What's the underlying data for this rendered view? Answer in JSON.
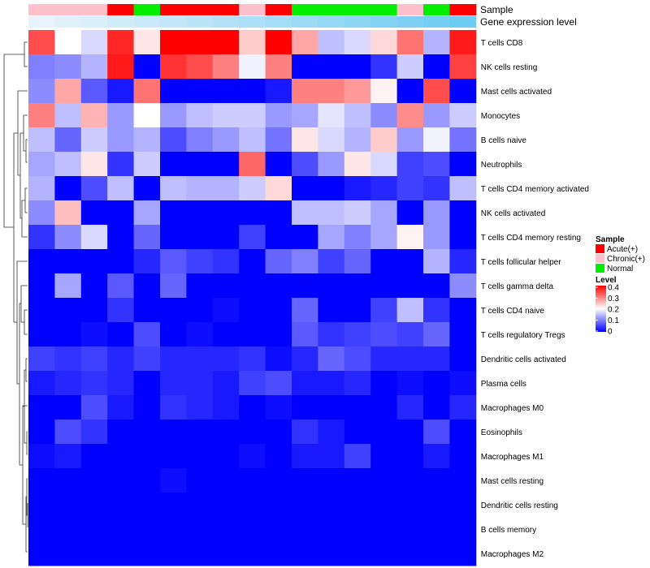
{
  "chart_data": {
    "type": "heatmap",
    "title": "",
    "annotation_labels": [
      "Sample",
      "Gene expression level"
    ],
    "rows": [
      "T cells CD8",
      "NK cells resting",
      "Mast cells activated",
      "Monocytes",
      "B cells naive",
      "Neutrophils",
      "T cells CD4 memory activated",
      "NK cells activated",
      "T cells CD4 memory resting",
      "T cells follicular helper",
      "T cells gamma delta",
      "T cells CD4 naive",
      "T cells regulatory  Tregs",
      "Dendritic cells activated",
      "Plasma cells",
      "Macrophages M0",
      "Eosinophils",
      "Macrophages M1",
      "Mast cells resting",
      "Dendritic cells resting",
      "B cells memory",
      "Macrophages M2"
    ],
    "sample_groups": [
      "Chronic(+)",
      "Chronic(+)",
      "Chronic(+)",
      "Acute(+)",
      "Normal",
      "Acute(+)",
      "Acute(+)",
      "Acute(+)",
      "Chronic(+)",
      "Acute(+)",
      "Normal",
      "Normal",
      "Normal",
      "Normal",
      "Chronic(+)",
      "Normal",
      "Acute(+)"
    ],
    "gene_expression_level": [
      0.02,
      0.03,
      0.04,
      0.05,
      0.06,
      0.07,
      0.08,
      0.09,
      0.1,
      0.11,
      0.12,
      0.13,
      0.14,
      0.15,
      0.16,
      0.17,
      0.18
    ],
    "values": [
      [
        0.34,
        0.2,
        0.17,
        0.37,
        0.22,
        0.4,
        0.4,
        0.4,
        0.24,
        0.4,
        0.27,
        0.15,
        0.17,
        0.23,
        0.31,
        0.14,
        0.38
      ],
      [
        0.1,
        0.11,
        0.14,
        0.38,
        0.0,
        0.36,
        0.34,
        0.3,
        0.19,
        0.3,
        0.0,
        0.0,
        0.0,
        0.04,
        0.16,
        0.0,
        0.35
      ],
      [
        0.11,
        0.27,
        0.07,
        0.02,
        0.31,
        0.0,
        0.0,
        0.0,
        0.0,
        0.02,
        0.3,
        0.3,
        0.28,
        0.21,
        0.0,
        0.34,
        0.0
      ],
      [
        0.3,
        0.15,
        0.26,
        0.12,
        0.2,
        0.12,
        0.15,
        0.16,
        0.16,
        0.12,
        0.13,
        0.18,
        0.15,
        0.11,
        0.29,
        0.12,
        0.16
      ],
      [
        0.15,
        0.08,
        0.16,
        0.12,
        0.14,
        0.06,
        0.1,
        0.12,
        0.15,
        0.09,
        0.22,
        0.17,
        0.14,
        0.24,
        0.12,
        0.19,
        0.09
      ],
      [
        0.13,
        0.15,
        0.22,
        0.04,
        0.16,
        0.0,
        0.0,
        0.0,
        0.32,
        0.0,
        0.06,
        0.12,
        0.22,
        0.17,
        0.05,
        0.06,
        0.0
      ],
      [
        0.14,
        0.0,
        0.06,
        0.15,
        0.0,
        0.15,
        0.14,
        0.14,
        0.16,
        0.23,
        0.0,
        0.0,
        0.02,
        0.03,
        0.05,
        0.04,
        0.15
      ],
      [
        0.11,
        0.25,
        0.0,
        0.0,
        0.13,
        0.0,
        0.0,
        0.0,
        0.0,
        0.0,
        0.15,
        0.15,
        0.16,
        0.13,
        0.0,
        0.12,
        0.0
      ],
      [
        0.04,
        0.11,
        0.17,
        0.0,
        0.08,
        0.0,
        0.0,
        0.0,
        0.05,
        0.0,
        0.0,
        0.13,
        0.1,
        0.13,
        0.21,
        0.12,
        0.0
      ],
      [
        0.0,
        0.0,
        0.0,
        0.0,
        0.03,
        0.07,
        0.05,
        0.04,
        0.0,
        0.08,
        0.1,
        0.05,
        0.08,
        0.0,
        0.0,
        0.14,
        0.03
      ],
      [
        0.0,
        0.13,
        0.0,
        0.07,
        0.0,
        0.08,
        0.0,
        0.0,
        0.0,
        0.0,
        0.0,
        0.0,
        0.0,
        0.0,
        0.0,
        0.0,
        0.11
      ],
      [
        0.0,
        0.0,
        0.0,
        0.04,
        0.0,
        0.0,
        0.0,
        0.01,
        0.0,
        0.0,
        0.08,
        0.0,
        0.0,
        0.05,
        0.15,
        0.04,
        0.0
      ],
      [
        0.0,
        0.0,
        0.01,
        0.0,
        0.06,
        0.0,
        0.01,
        0.0,
        0.0,
        0.0,
        0.07,
        0.04,
        0.05,
        0.06,
        0.05,
        0.08,
        0.0
      ],
      [
        0.05,
        0.04,
        0.05,
        0.03,
        0.05,
        0.03,
        0.03,
        0.03,
        0.04,
        0.01,
        0.03,
        0.08,
        0.06,
        0.03,
        0.03,
        0.03,
        0.0
      ],
      [
        0.02,
        0.03,
        0.04,
        0.03,
        0.0,
        0.03,
        0.03,
        0.02,
        0.05,
        0.06,
        0.02,
        0.02,
        0.03,
        0.0,
        0.01,
        0.0,
        0.01
      ],
      [
        0.0,
        0.0,
        0.06,
        0.02,
        0.0,
        0.04,
        0.03,
        0.02,
        0.0,
        0.01,
        0.0,
        0.0,
        0.0,
        0.0,
        0.03,
        0.0,
        0.03
      ],
      [
        0.0,
        0.06,
        0.04,
        0.0,
        0.0,
        0.0,
        0.0,
        0.0,
        0.0,
        0.0,
        0.04,
        0.02,
        0.0,
        0.0,
        0.0,
        0.06,
        0.0
      ],
      [
        0.01,
        0.02,
        0.0,
        0.0,
        0.0,
        0.0,
        0.0,
        0.0,
        0.01,
        0.0,
        0.02,
        0.02,
        0.05,
        0.0,
        0.0,
        0.02,
        0.0
      ],
      [
        0.0,
        0.0,
        0.0,
        0.0,
        0.0,
        0.01,
        0.0,
        0.0,
        0.0,
        0.0,
        0.0,
        0.0,
        0.0,
        0.0,
        0.0,
        0.0,
        0.0
      ],
      [
        0.0,
        0.0,
        0.0,
        0.0,
        0.0,
        0.0,
        0.0,
        0.0,
        0.0,
        0.0,
        0.0,
        0.0,
        0.0,
        0.0,
        0.0,
        0.0,
        0.0
      ],
      [
        0.0,
        0.0,
        0.0,
        0.0,
        0.0,
        0.0,
        0.0,
        0.0,
        0.0,
        0.0,
        0.0,
        0.0,
        0.0,
        0.0,
        0.0,
        0.0,
        0.0
      ],
      [
        0.0,
        0.0,
        0.0,
        0.0,
        0.0,
        0.0,
        0.0,
        0.0,
        0.0,
        0.0,
        0.0,
        0.0,
        0.0,
        0.0,
        0.0,
        0.0,
        0.0
      ]
    ],
    "color_scale": {
      "low": "#0000ff",
      "mid": "#ffffff",
      "high": "#ff0000",
      "range": [
        0,
        0.4
      ],
      "midpoint": 0.2
    },
    "level_ticks": [
      "0.4",
      "0.3",
      "0.2",
      "0.1",
      "0"
    ],
    "legends": {
      "sample": {
        "title": "Sample",
        "items": [
          {
            "label": "Acute(+)",
            "color": "#ff0000"
          },
          {
            "label": "Chronic(+)",
            "color": "#ffc0cb"
          },
          {
            "label": "Normal",
            "color": "#00ee00"
          }
        ]
      },
      "level": {
        "title": "Level"
      }
    },
    "gene_expression_colors": {
      "low": "#e8f4fb",
      "high": "#6ecbf2"
    },
    "dendrogram": "row clustering tree on the left"
  }
}
